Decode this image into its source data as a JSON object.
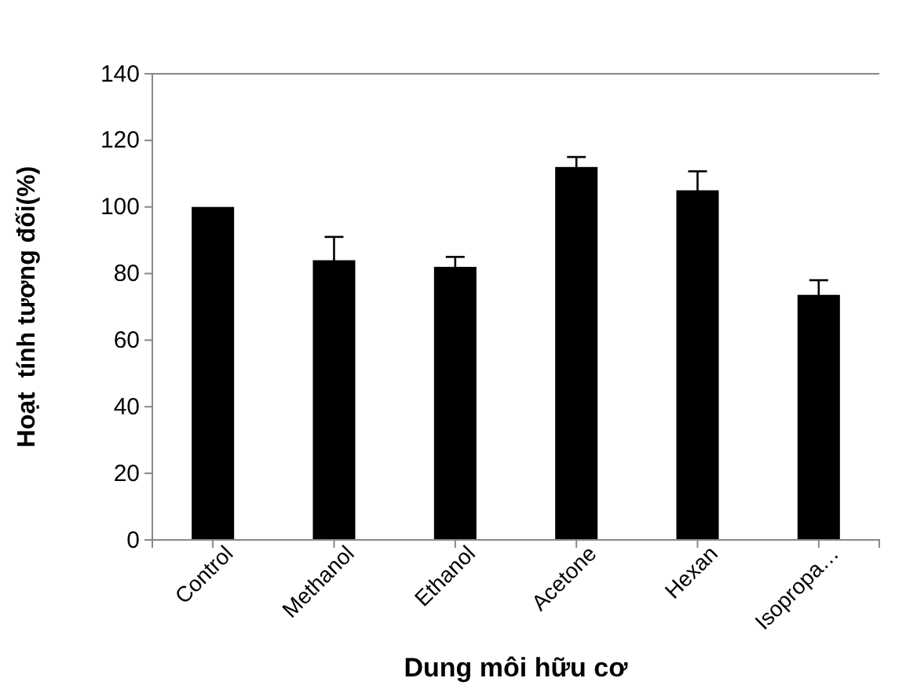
{
  "chart_data": {
    "type": "bar",
    "xlabel": "Dung môi hữu cơ",
    "ylabel": "Hoạt  tính tương đối(%)",
    "categories": [
      "Control",
      "Methanol",
      "Ethanol",
      "Acetone",
      "Hexan",
      "Isopropa…"
    ],
    "values": [
      100,
      84,
      82,
      112,
      105,
      73.6
    ],
    "errors": [
      null,
      7,
      3,
      3,
      5.7,
      4.4
    ],
    "color": "#000000",
    "ylim": [
      0,
      140
    ],
    "yticks": [
      0,
      20,
      40,
      60,
      80,
      100,
      120,
      140
    ],
    "grid": false
  }
}
